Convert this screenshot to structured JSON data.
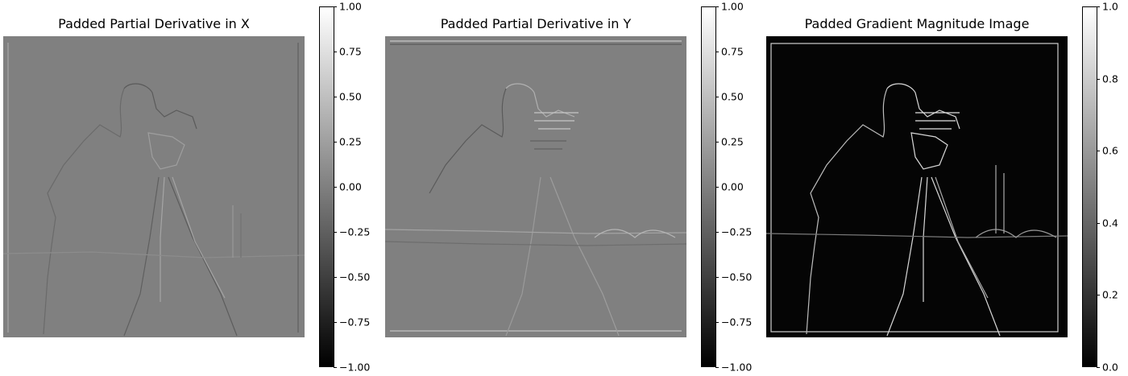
{
  "panels": [
    {
      "title": "Padded Partial Derivative in X",
      "background_color": "#808080",
      "colorbar_ticks": [
        "1.00",
        "0.75",
        "0.50",
        "0.25",
        "0.00",
        "−0.25",
        "−0.50",
        "−0.75",
        "−1.00"
      ]
    },
    {
      "title": "Padded Partial Derivative in Y",
      "background_color": "#808080",
      "colorbar_ticks": [
        "1.00",
        "0.75",
        "0.50",
        "0.25",
        "0.00",
        "−0.25",
        "−0.50",
        "−0.75",
        "−1.00"
      ]
    },
    {
      "title": "Padded Gradient Magnitude Image",
      "background_color": "#050505",
      "colorbar_ticks": [
        "1.0",
        "0.8",
        "0.6",
        "0.4",
        "0.2",
        "0.0"
      ]
    }
  ],
  "colormap": {
    "top": "#ffffff",
    "bottom": "#000000"
  }
}
